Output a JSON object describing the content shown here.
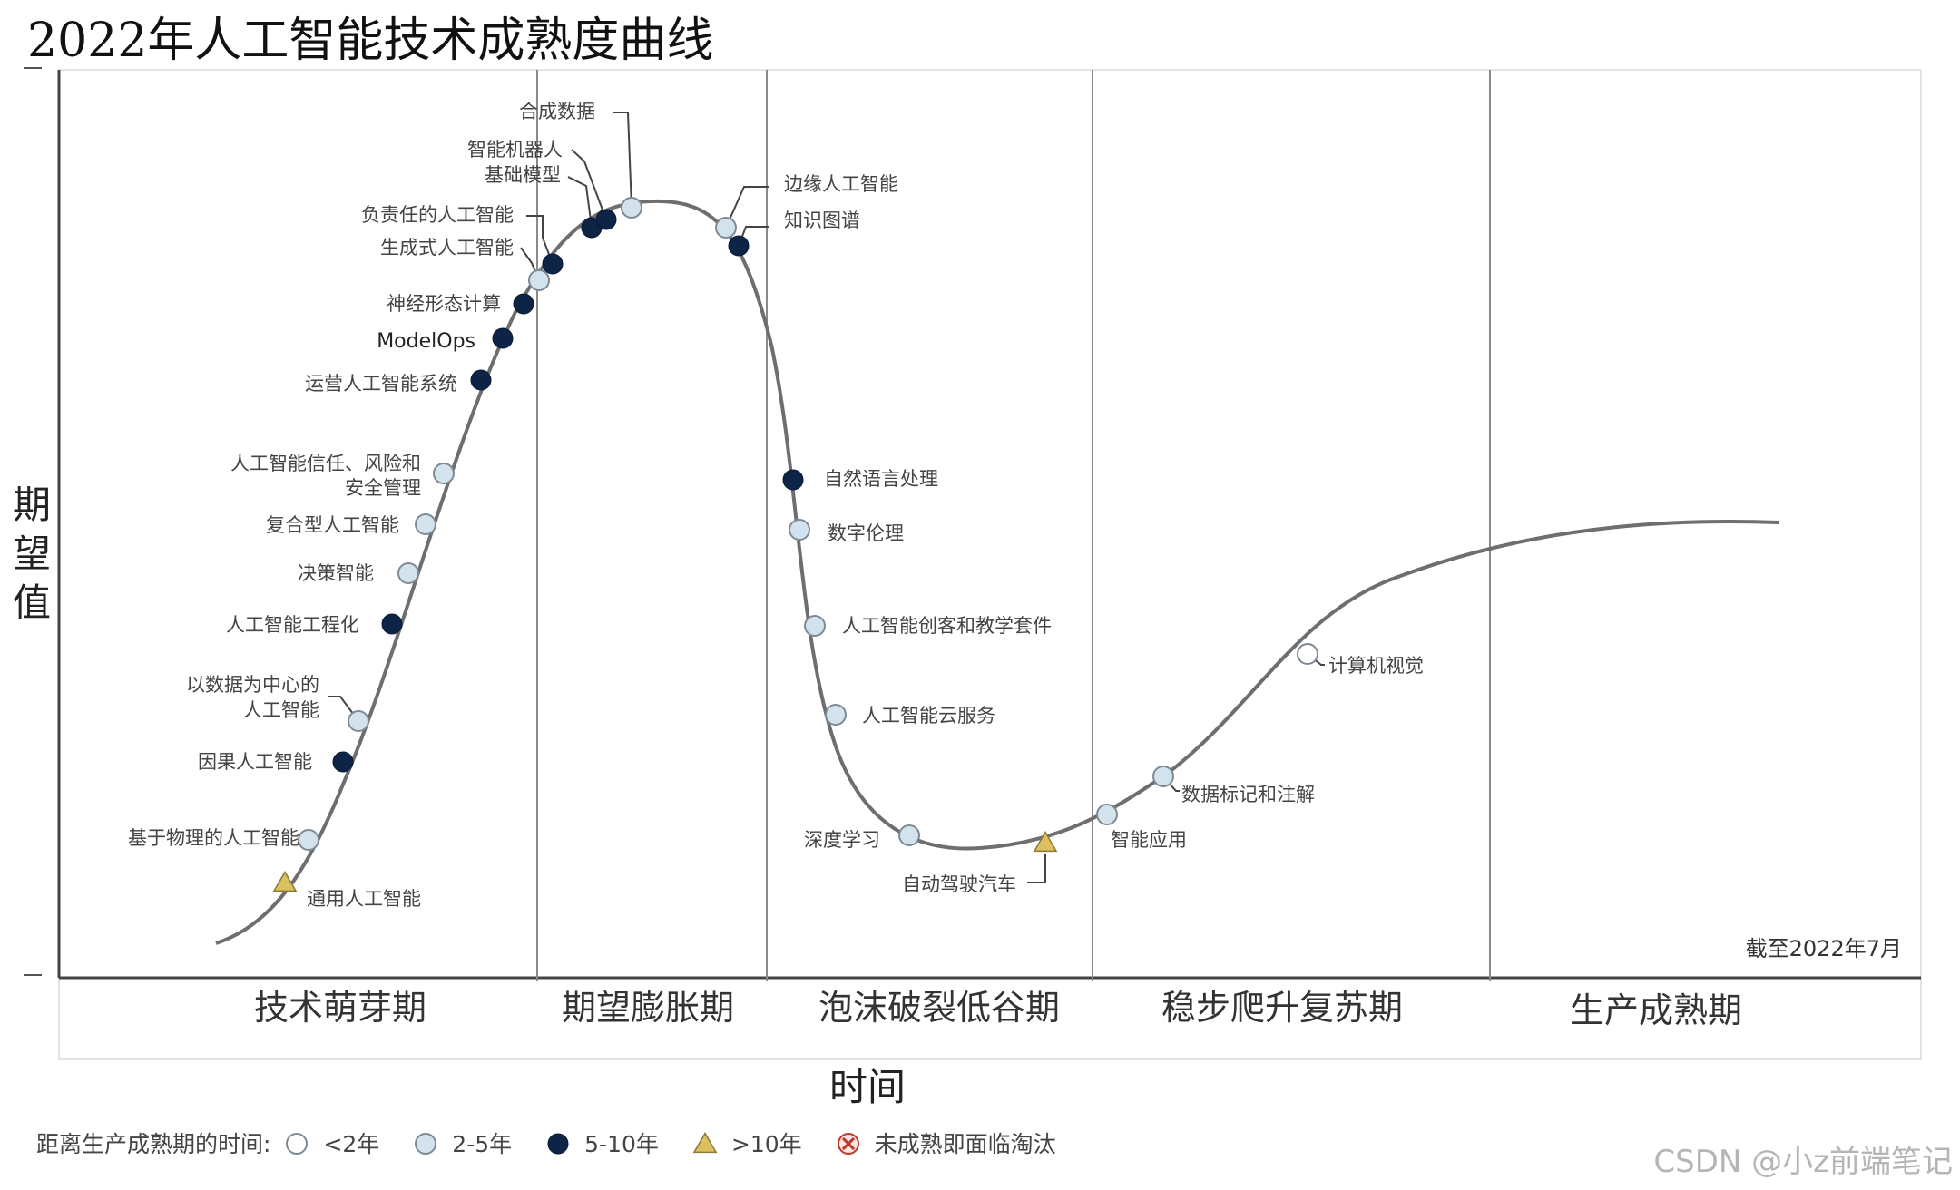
{
  "chart_data": {
    "type": "line",
    "title": "2022年人工智能技术成熟度曲线",
    "xlabel": "时间",
    "ylabel": "期望值",
    "note": "截至2022年7月",
    "phases": [
      "技术萌芽期",
      "期望膨胀期",
      "泡沫破裂低谷期",
      "稳步爬升复苏期",
      "生产成熟期"
    ],
    "legend_title": "距离生产成熟期的时间:",
    "legend": [
      {
        "key": "lt2",
        "label": "<2年"
      },
      {
        "key": "2to5",
        "label": "2-5年"
      },
      {
        "key": "5to10",
        "label": "5-10年"
      },
      {
        "key": "gt10",
        "label": ">10年"
      },
      {
        "key": "obsolete",
        "label": "未成熟即面临淘汰"
      }
    ],
    "points": [
      {
        "label": "通用人工智能",
        "category": "gt10"
      },
      {
        "label": "基于物理的人工智能",
        "category": "2to5"
      },
      {
        "label": "因果人工智能",
        "category": "5to10"
      },
      {
        "label": "以数据为中心的人工智能",
        "lines": [
          "以数据为中心的",
          "人工智能"
        ],
        "category": "2to5"
      },
      {
        "label": "人工智能工程化",
        "category": "5to10"
      },
      {
        "label": "决策智能",
        "category": "2to5"
      },
      {
        "label": "复合型人工智能",
        "category": "2to5"
      },
      {
        "label": "人工智能信任、风险和安全管理",
        "lines": [
          "人工智能信任、风险和",
          "安全管理"
        ],
        "category": "2to5"
      },
      {
        "label": "运营人工智能系统",
        "category": "5to10"
      },
      {
        "label": "ModelOps",
        "category": "5to10"
      },
      {
        "label": "神经形态计算",
        "category": "5to10"
      },
      {
        "label": "生成式人工智能",
        "category": "2to5"
      },
      {
        "label": "负责任的人工智能",
        "category": "5to10"
      },
      {
        "label": "基础模型",
        "category": "5to10"
      },
      {
        "label": "智能机器人",
        "category": "5to10"
      },
      {
        "label": "合成数据",
        "category": "2to5"
      },
      {
        "label": "边缘人工智能",
        "category": "2to5"
      },
      {
        "label": "知识图谱",
        "category": "5to10"
      },
      {
        "label": "自然语言处理",
        "category": "5to10"
      },
      {
        "label": "数字伦理",
        "category": "2to5"
      },
      {
        "label": "人工智能创客和教学套件",
        "category": "2to5"
      },
      {
        "label": "人工智能云服务",
        "category": "2to5"
      },
      {
        "label": "深度学习",
        "category": "2to5"
      },
      {
        "label": "自动驾驶汽车",
        "category": "gt10"
      },
      {
        "label": "智能应用",
        "category": "2to5"
      },
      {
        "label": "数据标记和注解",
        "category": "2to5"
      },
      {
        "label": "计算机视觉",
        "category": "lt2"
      }
    ],
    "colors": {
      "lt2": "#ffffff",
      "2to5": "#d3e3ee",
      "5to10": "#0d2446",
      "gt10": "#dcc060",
      "obsolete": "#c0392b",
      "curve": "#6e6e6e"
    }
  },
  "watermark": "CSDN @小z前端笔记"
}
